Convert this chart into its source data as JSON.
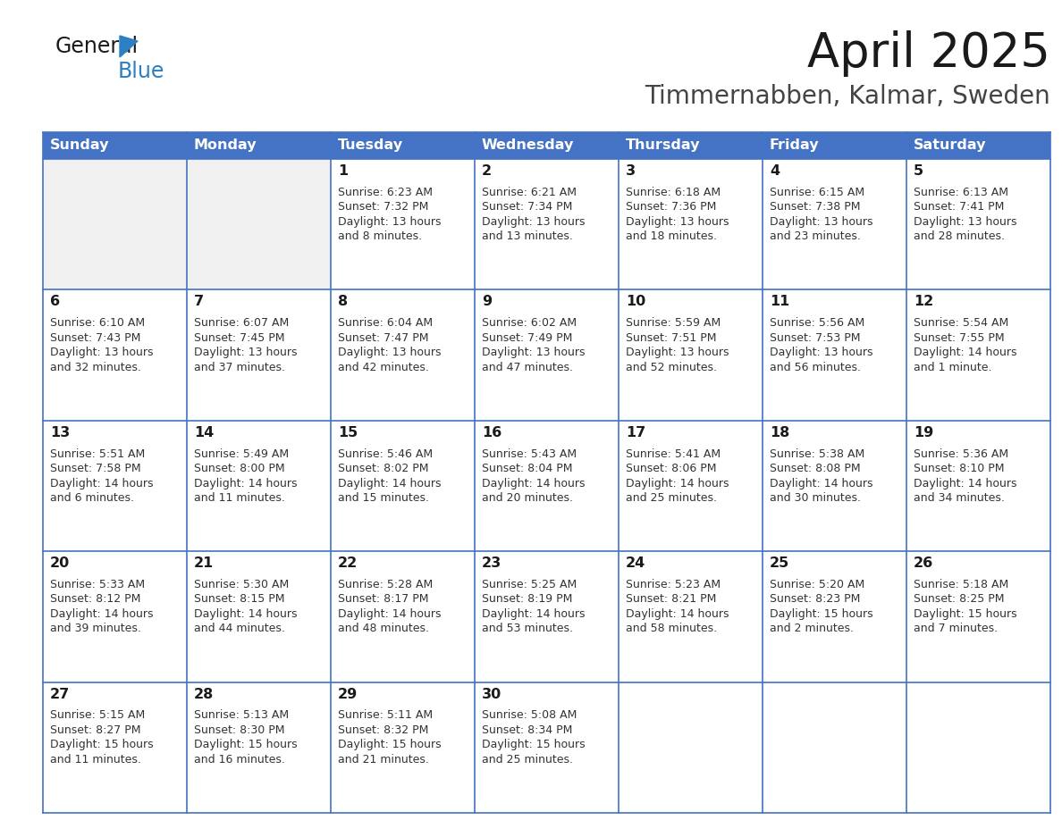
{
  "title": "April 2025",
  "subtitle": "Timmernabben, Kalmar, Sweden",
  "days_of_week": [
    "Sunday",
    "Monday",
    "Tuesday",
    "Wednesday",
    "Thursday",
    "Friday",
    "Saturday"
  ],
  "header_bg": "#4472C4",
  "header_text": "#FFFFFF",
  "cell_bg_white": "#FFFFFF",
  "cell_bg_gray": "#F0F0F0",
  "day_num_color": "#1a1a1a",
  "text_color": "#333333",
  "grid_color": "#4472C4",
  "title_color": "#1a1a1a",
  "subtitle_color": "#444444",
  "logo_general_color": "#1a1a1a",
  "logo_blue_color": "#2b7fc2",
  "weeks": [
    [
      {
        "day": "",
        "sunrise": "",
        "sunset": "",
        "daylight": "",
        "daylight2": ""
      },
      {
        "day": "",
        "sunrise": "",
        "sunset": "",
        "daylight": "",
        "daylight2": ""
      },
      {
        "day": "1",
        "sunrise": "Sunrise: 6:23 AM",
        "sunset": "Sunset: 7:32 PM",
        "daylight": "Daylight: 13 hours",
        "daylight2": "and 8 minutes."
      },
      {
        "day": "2",
        "sunrise": "Sunrise: 6:21 AM",
        "sunset": "Sunset: 7:34 PM",
        "daylight": "Daylight: 13 hours",
        "daylight2": "and 13 minutes."
      },
      {
        "day": "3",
        "sunrise": "Sunrise: 6:18 AM",
        "sunset": "Sunset: 7:36 PM",
        "daylight": "Daylight: 13 hours",
        "daylight2": "and 18 minutes."
      },
      {
        "day": "4",
        "sunrise": "Sunrise: 6:15 AM",
        "sunset": "Sunset: 7:38 PM",
        "daylight": "Daylight: 13 hours",
        "daylight2": "and 23 minutes."
      },
      {
        "day": "5",
        "sunrise": "Sunrise: 6:13 AM",
        "sunset": "Sunset: 7:41 PM",
        "daylight": "Daylight: 13 hours",
        "daylight2": "and 28 minutes."
      }
    ],
    [
      {
        "day": "6",
        "sunrise": "Sunrise: 6:10 AM",
        "sunset": "Sunset: 7:43 PM",
        "daylight": "Daylight: 13 hours",
        "daylight2": "and 32 minutes."
      },
      {
        "day": "7",
        "sunrise": "Sunrise: 6:07 AM",
        "sunset": "Sunset: 7:45 PM",
        "daylight": "Daylight: 13 hours",
        "daylight2": "and 37 minutes."
      },
      {
        "day": "8",
        "sunrise": "Sunrise: 6:04 AM",
        "sunset": "Sunset: 7:47 PM",
        "daylight": "Daylight: 13 hours",
        "daylight2": "and 42 minutes."
      },
      {
        "day": "9",
        "sunrise": "Sunrise: 6:02 AM",
        "sunset": "Sunset: 7:49 PM",
        "daylight": "Daylight: 13 hours",
        "daylight2": "and 47 minutes."
      },
      {
        "day": "10",
        "sunrise": "Sunrise: 5:59 AM",
        "sunset": "Sunset: 7:51 PM",
        "daylight": "Daylight: 13 hours",
        "daylight2": "and 52 minutes."
      },
      {
        "day": "11",
        "sunrise": "Sunrise: 5:56 AM",
        "sunset": "Sunset: 7:53 PM",
        "daylight": "Daylight: 13 hours",
        "daylight2": "and 56 minutes."
      },
      {
        "day": "12",
        "sunrise": "Sunrise: 5:54 AM",
        "sunset": "Sunset: 7:55 PM",
        "daylight": "Daylight: 14 hours",
        "daylight2": "and 1 minute."
      }
    ],
    [
      {
        "day": "13",
        "sunrise": "Sunrise: 5:51 AM",
        "sunset": "Sunset: 7:58 PM",
        "daylight": "Daylight: 14 hours",
        "daylight2": "and 6 minutes."
      },
      {
        "day": "14",
        "sunrise": "Sunrise: 5:49 AM",
        "sunset": "Sunset: 8:00 PM",
        "daylight": "Daylight: 14 hours",
        "daylight2": "and 11 minutes."
      },
      {
        "day": "15",
        "sunrise": "Sunrise: 5:46 AM",
        "sunset": "Sunset: 8:02 PM",
        "daylight": "Daylight: 14 hours",
        "daylight2": "and 15 minutes."
      },
      {
        "day": "16",
        "sunrise": "Sunrise: 5:43 AM",
        "sunset": "Sunset: 8:04 PM",
        "daylight": "Daylight: 14 hours",
        "daylight2": "and 20 minutes."
      },
      {
        "day": "17",
        "sunrise": "Sunrise: 5:41 AM",
        "sunset": "Sunset: 8:06 PM",
        "daylight": "Daylight: 14 hours",
        "daylight2": "and 25 minutes."
      },
      {
        "day": "18",
        "sunrise": "Sunrise: 5:38 AM",
        "sunset": "Sunset: 8:08 PM",
        "daylight": "Daylight: 14 hours",
        "daylight2": "and 30 minutes."
      },
      {
        "day": "19",
        "sunrise": "Sunrise: 5:36 AM",
        "sunset": "Sunset: 8:10 PM",
        "daylight": "Daylight: 14 hours",
        "daylight2": "and 34 minutes."
      }
    ],
    [
      {
        "day": "20",
        "sunrise": "Sunrise: 5:33 AM",
        "sunset": "Sunset: 8:12 PM",
        "daylight": "Daylight: 14 hours",
        "daylight2": "and 39 minutes."
      },
      {
        "day": "21",
        "sunrise": "Sunrise: 5:30 AM",
        "sunset": "Sunset: 8:15 PM",
        "daylight": "Daylight: 14 hours",
        "daylight2": "and 44 minutes."
      },
      {
        "day": "22",
        "sunrise": "Sunrise: 5:28 AM",
        "sunset": "Sunset: 8:17 PM",
        "daylight": "Daylight: 14 hours",
        "daylight2": "and 48 minutes."
      },
      {
        "day": "23",
        "sunrise": "Sunrise: 5:25 AM",
        "sunset": "Sunset: 8:19 PM",
        "daylight": "Daylight: 14 hours",
        "daylight2": "and 53 minutes."
      },
      {
        "day": "24",
        "sunrise": "Sunrise: 5:23 AM",
        "sunset": "Sunset: 8:21 PM",
        "daylight": "Daylight: 14 hours",
        "daylight2": "and 58 minutes."
      },
      {
        "day": "25",
        "sunrise": "Sunrise: 5:20 AM",
        "sunset": "Sunset: 8:23 PM",
        "daylight": "Daylight: 15 hours",
        "daylight2": "and 2 minutes."
      },
      {
        "day": "26",
        "sunrise": "Sunrise: 5:18 AM",
        "sunset": "Sunset: 8:25 PM",
        "daylight": "Daylight: 15 hours",
        "daylight2": "and 7 minutes."
      }
    ],
    [
      {
        "day": "27",
        "sunrise": "Sunrise: 5:15 AM",
        "sunset": "Sunset: 8:27 PM",
        "daylight": "Daylight: 15 hours",
        "daylight2": "and 11 minutes."
      },
      {
        "day": "28",
        "sunrise": "Sunrise: 5:13 AM",
        "sunset": "Sunset: 8:30 PM",
        "daylight": "Daylight: 15 hours",
        "daylight2": "and 16 minutes."
      },
      {
        "day": "29",
        "sunrise": "Sunrise: 5:11 AM",
        "sunset": "Sunset: 8:32 PM",
        "daylight": "Daylight: 15 hours",
        "daylight2": "and 21 minutes."
      },
      {
        "day": "30",
        "sunrise": "Sunrise: 5:08 AM",
        "sunset": "Sunset: 8:34 PM",
        "daylight": "Daylight: 15 hours",
        "daylight2": "and 25 minutes."
      },
      {
        "day": "",
        "sunrise": "",
        "sunset": "",
        "daylight": "",
        "daylight2": ""
      },
      {
        "day": "",
        "sunrise": "",
        "sunset": "",
        "daylight": "",
        "daylight2": ""
      },
      {
        "day": "",
        "sunrise": "",
        "sunset": "",
        "daylight": "",
        "daylight2": ""
      }
    ]
  ]
}
